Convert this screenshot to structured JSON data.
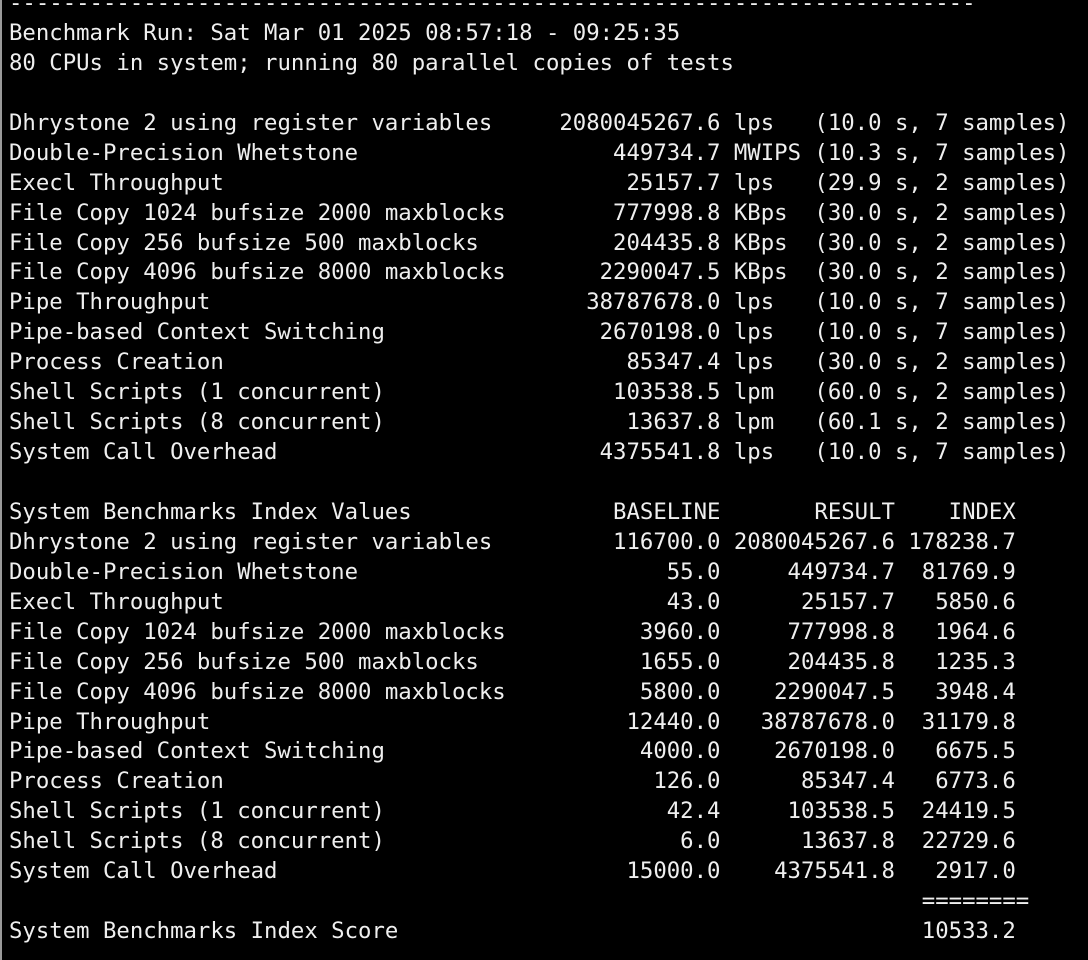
{
  "separator": "------------------------------------------------------------------------",
  "header": {
    "run": "Benchmark Run: Sat Mar 01 2025 08:57:18 - 09:25:35",
    "cpus": "80 CPUs in system; running 80 parallel copies of tests"
  },
  "results": [
    {
      "name": "Dhrystone 2 using register variables",
      "value": "2080045267.6",
      "unit": "lps",
      "detail": "(10.0 s, 7 samples)"
    },
    {
      "name": "Double-Precision Whetstone",
      "value": "449734.7",
      "unit": "MWIPS",
      "detail": "(10.3 s, 7 samples)"
    },
    {
      "name": "Execl Throughput",
      "value": "25157.7",
      "unit": "lps",
      "detail": "(29.9 s, 2 samples)"
    },
    {
      "name": "File Copy 1024 bufsize 2000 maxblocks",
      "value": "777998.8",
      "unit": "KBps",
      "detail": "(30.0 s, 2 samples)"
    },
    {
      "name": "File Copy 256 bufsize 500 maxblocks",
      "value": "204435.8",
      "unit": "KBps",
      "detail": "(30.0 s, 2 samples)"
    },
    {
      "name": "File Copy 4096 bufsize 8000 maxblocks",
      "value": "2290047.5",
      "unit": "KBps",
      "detail": "(30.0 s, 2 samples)"
    },
    {
      "name": "Pipe Throughput",
      "value": "38787678.0",
      "unit": "lps",
      "detail": "(10.0 s, 7 samples)"
    },
    {
      "name": "Pipe-based Context Switching",
      "value": "2670198.0",
      "unit": "lps",
      "detail": "(10.0 s, 7 samples)"
    },
    {
      "name": "Process Creation",
      "value": "85347.4",
      "unit": "lps",
      "detail": "(30.0 s, 2 samples)"
    },
    {
      "name": "Shell Scripts (1 concurrent)",
      "value": "103538.5",
      "unit": "lpm",
      "detail": "(60.0 s, 2 samples)"
    },
    {
      "name": "Shell Scripts (8 concurrent)",
      "value": "13637.8",
      "unit": "lpm",
      "detail": "(60.1 s, 2 samples)"
    },
    {
      "name": "System Call Overhead",
      "value": "4375541.8",
      "unit": "lps",
      "detail": "(10.0 s, 7 samples)"
    }
  ],
  "index": {
    "title": "System Benchmarks Index Values",
    "columns": [
      "BASELINE",
      "RESULT",
      "INDEX"
    ],
    "rows": [
      {
        "name": "Dhrystone 2 using register variables",
        "baseline": "116700.0",
        "result": "2080045267.6",
        "index": "178238.7"
      },
      {
        "name": "Double-Precision Whetstone",
        "baseline": "55.0",
        "result": "449734.7",
        "index": "81769.9"
      },
      {
        "name": "Execl Throughput",
        "baseline": "43.0",
        "result": "25157.7",
        "index": "5850.6"
      },
      {
        "name": "File Copy 1024 bufsize 2000 maxblocks",
        "baseline": "3960.0",
        "result": "777998.8",
        "index": "1964.6"
      },
      {
        "name": "File Copy 256 bufsize 500 maxblocks",
        "baseline": "1655.0",
        "result": "204435.8",
        "index": "1235.3"
      },
      {
        "name": "File Copy 4096 bufsize 8000 maxblocks",
        "baseline": "5800.0",
        "result": "2290047.5",
        "index": "3948.4"
      },
      {
        "name": "Pipe Throughput",
        "baseline": "12440.0",
        "result": "38787678.0",
        "index": "31179.8"
      },
      {
        "name": "Pipe-based Context Switching",
        "baseline": "4000.0",
        "result": "2670198.0",
        "index": "6675.5"
      },
      {
        "name": "Process Creation",
        "baseline": "126.0",
        "result": "85347.4",
        "index": "6773.6"
      },
      {
        "name": "Shell Scripts (1 concurrent)",
        "baseline": "42.4",
        "result": "103538.5",
        "index": "24419.5"
      },
      {
        "name": "Shell Scripts (8 concurrent)",
        "baseline": "6.0",
        "result": "13637.8",
        "index": "22729.6"
      },
      {
        "name": "System Call Overhead",
        "baseline": "15000.0",
        "result": "4375541.8",
        "index": "2917.0"
      }
    ],
    "rule": "========",
    "score_label": "System Benchmarks Index Score",
    "score": "10533.2"
  }
}
